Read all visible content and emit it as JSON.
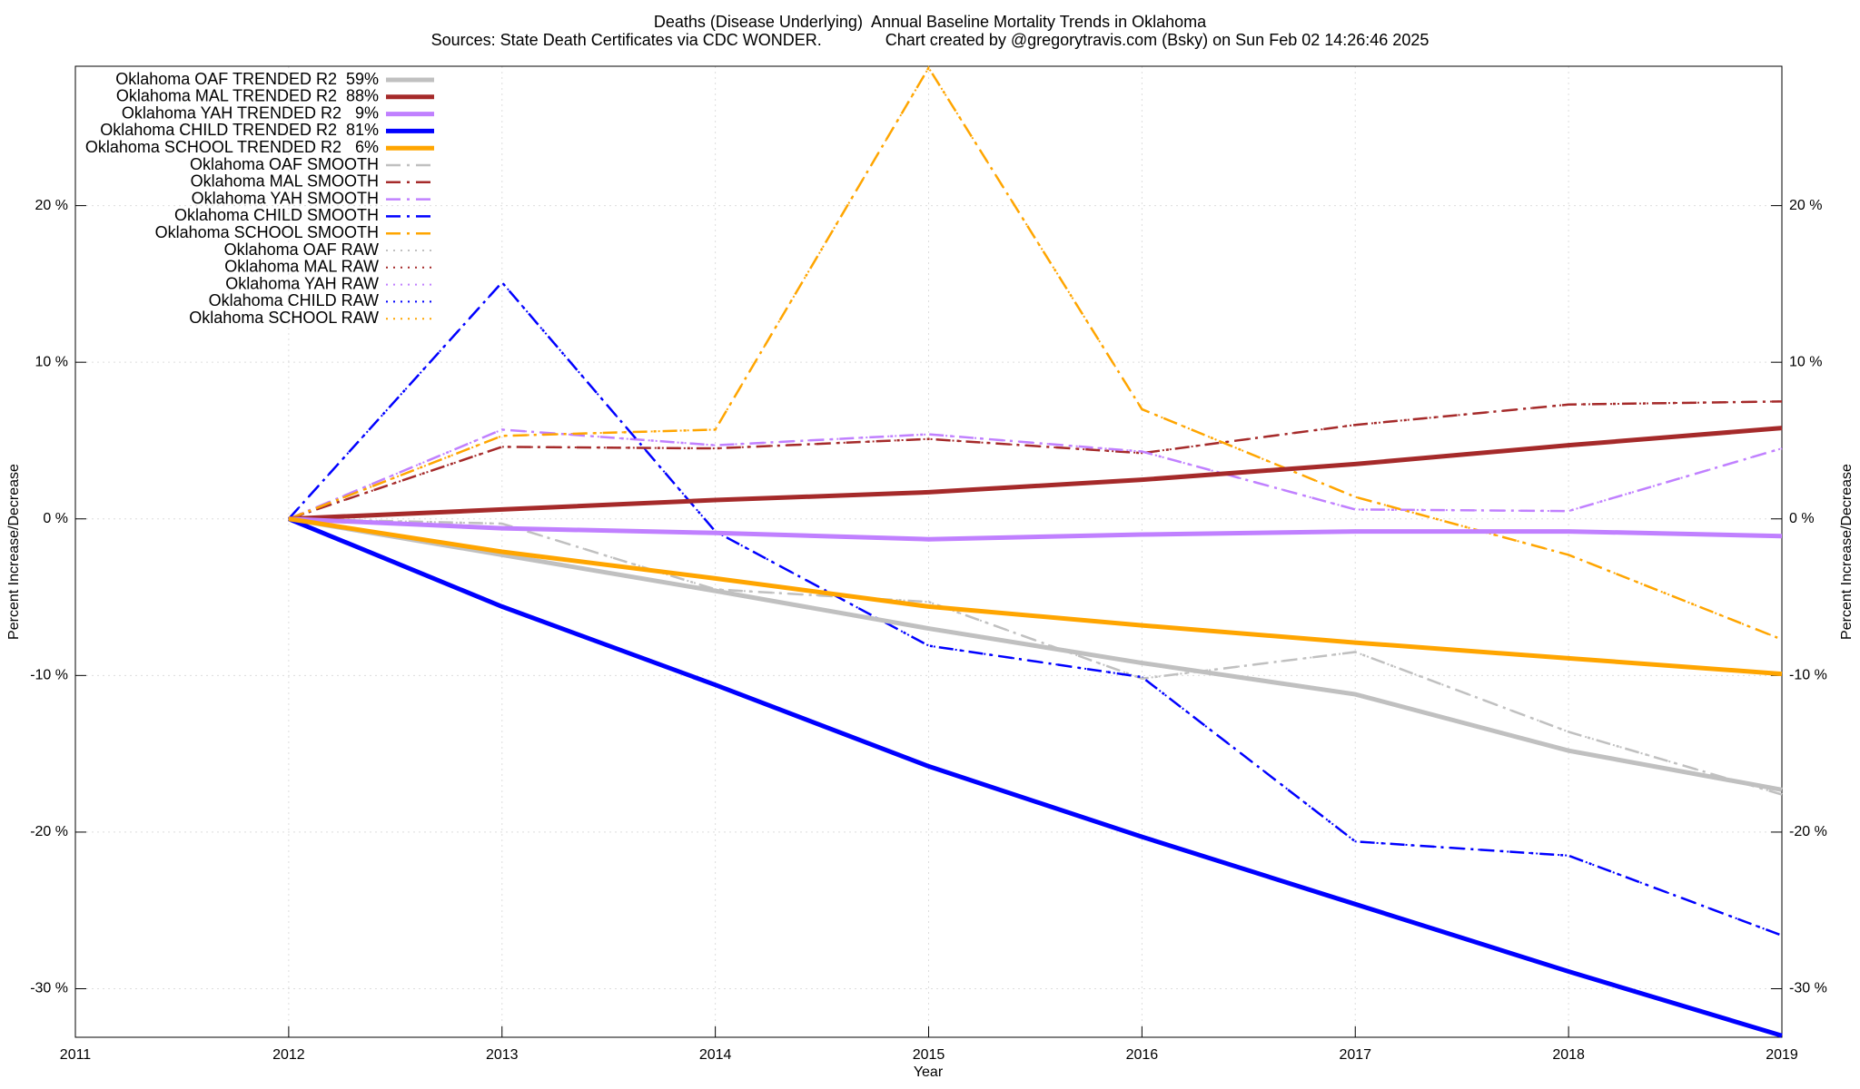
{
  "chart_data": {
    "type": "line",
    "title": "Deaths (Disease Underlying)  Annual Baseline Mortality Trends in Oklahoma",
    "subtitle": "Sources: State Death Certificates via CDC WONDER.              Chart created by @gregorytravis.com (Bsky) on Sun Feb 02 14:26:46 2025",
    "xlabel": "Year",
    "ylabel": "Percent Increase/Decrease",
    "x": [
      2012,
      2013,
      2014,
      2015,
      2016,
      2017,
      2018,
      2019
    ],
    "xlim": [
      2011,
      2019
    ],
    "xticks": [
      2011,
      2012,
      2013,
      2014,
      2015,
      2016,
      2017,
      2018,
      2019
    ],
    "ylim": [
      -33.1,
      28.9
    ],
    "yticks": [
      {
        "value": -30,
        "label": "-30 %"
      },
      {
        "value": -20,
        "label": "-20 %"
      },
      {
        "value": -10,
        "label": "-10 %"
      },
      {
        "value": 0,
        "label": "0 %"
      },
      {
        "value": 10,
        "label": "10 %"
      },
      {
        "value": 20,
        "label": "20 %"
      }
    ],
    "grid": true,
    "legend": "top-left",
    "series": [
      {
        "name": "Oklahoma OAF TRENDED R2  59%",
        "color": "#c0c0c0",
        "style": "solid",
        "values": [
          0,
          -2.3,
          -4.6,
          -7.0,
          -9.2,
          -11.2,
          -14.8,
          -17.3
        ]
      },
      {
        "name": "Oklahoma MAL TRENDED R2  88%",
        "color": "#a52a2a",
        "style": "solid",
        "values": [
          0,
          0.6,
          1.2,
          1.7,
          2.5,
          3.5,
          4.7,
          5.8
        ]
      },
      {
        "name": "Oklahoma YAH TRENDED R2   9%",
        "color": "#c080ff",
        "style": "solid",
        "values": [
          0,
          -0.6,
          -0.9,
          -1.3,
          -1.0,
          -0.8,
          -0.8,
          -1.1
        ]
      },
      {
        "name": "Oklahoma CHILD TRENDED R2  81%",
        "color": "#0000ff",
        "style": "solid",
        "values": [
          0,
          -5.6,
          -10.6,
          -15.8,
          -20.3,
          -24.6,
          -28.9,
          -33.0
        ]
      },
      {
        "name": "Oklahoma SCHOOL TRENDED R2   6%",
        "color": "#ffa500",
        "style": "solid",
        "values": [
          0,
          -2.1,
          -3.8,
          -5.6,
          -6.8,
          -7.9,
          -8.9,
          -9.9
        ]
      },
      {
        "name": "Oklahoma OAF SMOOTH",
        "color": "#c0c0c0",
        "style": "dashdot",
        "values": [
          0,
          -0.3,
          -4.5,
          -5.3,
          -10.2,
          -8.5,
          -13.6,
          -17.6
        ]
      },
      {
        "name": "Oklahoma MAL SMOOTH",
        "color": "#a52a2a",
        "style": "dashdot",
        "values": [
          0,
          4.6,
          4.5,
          5.1,
          4.2,
          6.0,
          7.3,
          7.5
        ]
      },
      {
        "name": "Oklahoma YAH SMOOTH",
        "color": "#c080ff",
        "style": "dashdot",
        "values": [
          0,
          5.7,
          4.7,
          5.4,
          4.3,
          0.6,
          0.5,
          4.5
        ]
      },
      {
        "name": "Oklahoma CHILD SMOOTH",
        "color": "#0000ff",
        "style": "dashdot",
        "values": [
          0,
          15.1,
          -0.8,
          -8.1,
          -10.1,
          -20.6,
          -21.5,
          -26.6
        ]
      },
      {
        "name": "Oklahoma SCHOOL SMOOTH",
        "color": "#ffa500",
        "style": "dashdot",
        "values": [
          0,
          5.3,
          5.7,
          28.8,
          7.0,
          1.4,
          -2.3,
          -7.7
        ]
      },
      {
        "name": "Oklahoma OAF RAW",
        "color": "#c0c0c0",
        "style": "dotted",
        "values": [
          0,
          -0.3,
          -4.5,
          -5.3,
          -10.2,
          -8.5,
          -13.6,
          -17.6
        ]
      },
      {
        "name": "Oklahoma MAL RAW",
        "color": "#a52a2a",
        "style": "dotted",
        "values": [
          0,
          4.6,
          4.5,
          5.1,
          4.2,
          6.0,
          7.3,
          7.5
        ]
      },
      {
        "name": "Oklahoma YAH RAW",
        "color": "#c080ff",
        "style": "dotted",
        "values": [
          0,
          5.7,
          4.7,
          5.4,
          4.3,
          0.6,
          0.5,
          4.5
        ]
      },
      {
        "name": "Oklahoma CHILD RAW",
        "color": "#0000ff",
        "style": "dotted",
        "values": [
          0,
          15.1,
          -0.8,
          -8.1,
          -10.1,
          -20.6,
          -21.5,
          -26.6
        ]
      },
      {
        "name": "Oklahoma SCHOOL RAW",
        "color": "#ffa500",
        "style": "dotted",
        "values": [
          0,
          5.3,
          5.7,
          28.8,
          7.0,
          1.4,
          -2.3,
          -7.7
        ]
      }
    ]
  }
}
